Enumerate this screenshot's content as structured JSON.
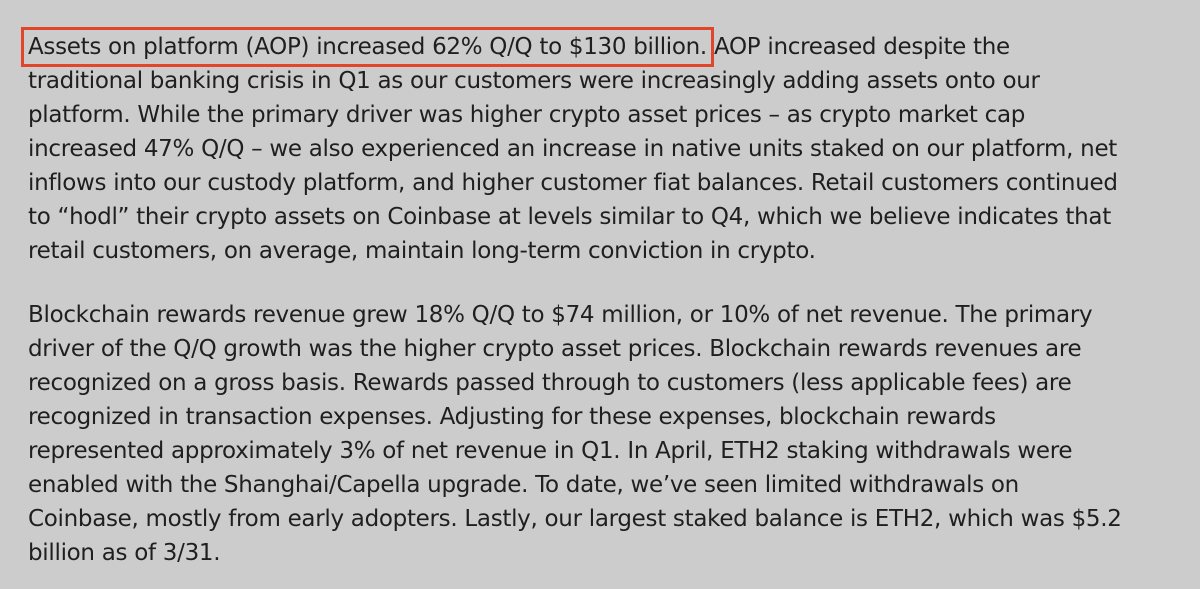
{
  "paragraphs": [
    {
      "highlight": "Assets on platform (AOP) increased 62% Q/Q to $130 billion.",
      "first_rest": " AOP increased despite the",
      "lines": [
        "traditional banking crisis in Q1 as our customers were increasingly adding assets onto our",
        "platform. While the primary driver was higher crypto asset prices – as crypto market cap",
        "increased 47% Q/Q – we also experienced an increase in native units staked on our platform, net",
        "inflows into our custody platform, and higher customer fiat balances. Retail customers continued",
        "to “hodl” their crypto assets on Coinbase at levels similar to Q4, which we believe indicates that",
        "retail customers, on average, maintain long-term conviction in crypto."
      ]
    },
    {
      "lines": [
        "Blockchain rewards revenue grew 18% Q/Q to $74 million, or 10% of net revenue. The primary",
        "driver of the Q/Q growth was the higher crypto asset prices. Blockchain rewards revenues are",
        "recognized on a gross basis. Rewards passed through to customers (less applicable fees) are",
        "recognized in transaction expenses. Adjusting for these expenses, blockchain rewards",
        "represented approximately 3% of net revenue in Q1. In April, ETH2 staking withdrawals were",
        "enabled with the Shanghai/Capella upgrade. To date, we’ve seen limited withdrawals on",
        "Coinbase, mostly from early adopters. Lastly, our largest staked balance is ETH2, which was $5.2",
        "billion as of 3/31."
      ]
    }
  ],
  "colors": {
    "background": "#cccccc",
    "text": "#1f1f1f",
    "highlight_border": "#e0462c"
  }
}
